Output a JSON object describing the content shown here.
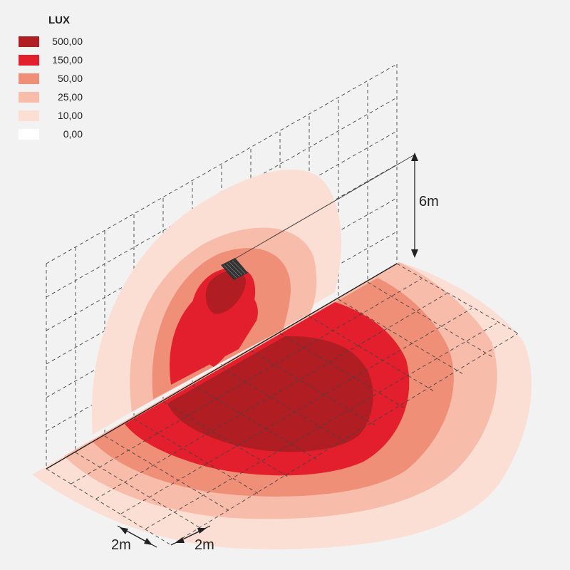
{
  "legend": {
    "title": "LUX",
    "items": [
      {
        "value": "500,00",
        "color": "#b01e23"
      },
      {
        "value": "150,00",
        "color": "#e41f2d"
      },
      {
        "value": "50,00",
        "color": "#f08f78"
      },
      {
        "value": "25,00",
        "color": "#f7bcaa"
      },
      {
        "value": "10,00",
        "color": "#fbdfd5"
      },
      {
        "value": "0,00",
        "color": "#ffffff"
      }
    ]
  },
  "dimensions": {
    "height": "6m",
    "grid_depth": "2m",
    "grid_width": "2m"
  },
  "fixture": {
    "name": "floodlight"
  }
}
